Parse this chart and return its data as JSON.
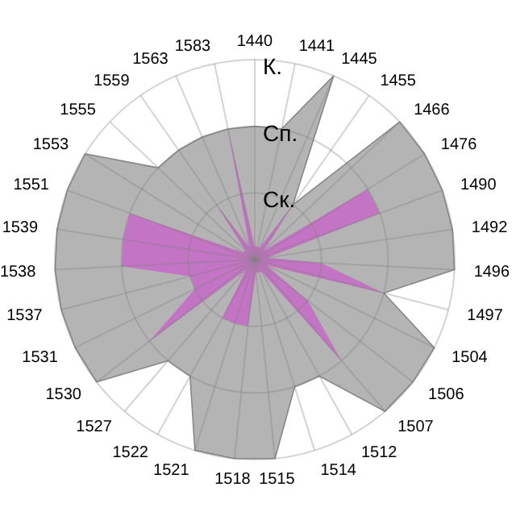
{
  "chart_data": {
    "type": "radar",
    "categories": [
      "1440",
      "1441",
      "1445",
      "1455",
      "1466",
      "1476",
      "1490",
      "1492",
      "1496",
      "1497",
      "1504",
      "1506",
      "1507",
      "1512",
      "1514",
      "1515",
      "1518",
      "1521",
      "1522",
      "1527",
      "1530",
      "1531",
      "1537",
      "1538",
      "1539",
      "1551",
      "1553",
      "1555",
      "1559",
      "1563",
      "1583"
    ],
    "series": [
      {
        "color": "#b4b4b4",
        "values": [
          2,
          2,
          3,
          1,
          3,
          3,
          3,
          3,
          3,
          2,
          3,
          3,
          3,
          2,
          2,
          3,
          3,
          3,
          2,
          2,
          3,
          3,
          3,
          3,
          3,
          3,
          3,
          2,
          2,
          2,
          2
        ]
      },
      {
        "color": "#c864c8",
        "values": [
          0.2,
          0.2,
          0.2,
          1,
          0.2,
          2,
          2,
          0.2,
          1,
          2,
          0.2,
          1,
          2,
          0.2,
          0.2,
          0.2,
          1,
          1,
          1,
          0.2,
          2,
          1,
          1,
          2,
          2,
          2,
          0.2,
          0.2,
          1,
          0.2,
          2
        ]
      }
    ],
    "ylim": [
      0,
      3
    ],
    "yticks": [
      {
        "value": 1,
        "label": "Ск."
      },
      {
        "value": 2,
        "label": "Сп."
      },
      {
        "value": 3,
        "label": "К."
      }
    ],
    "grid": true
  }
}
